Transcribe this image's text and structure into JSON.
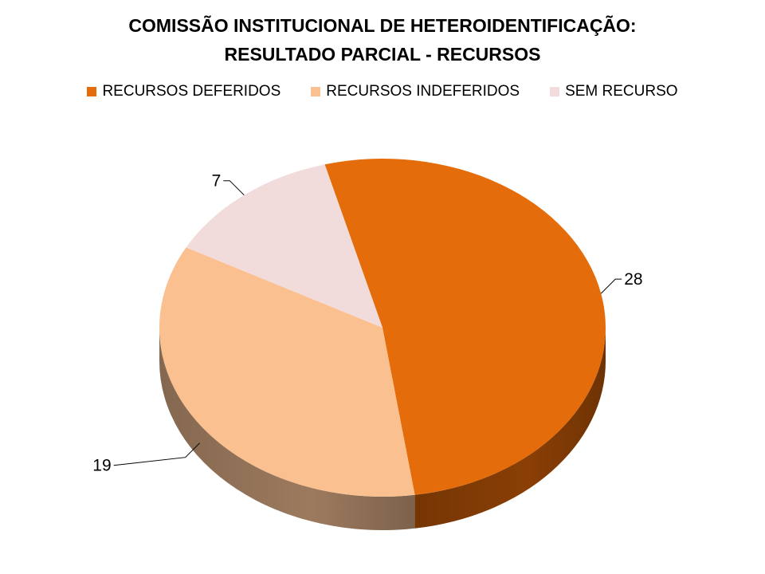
{
  "chart_data": {
    "type": "pie",
    "style": "3d",
    "title_lines": [
      "COMISSÃO INSTITUCIONAL DE HETEROIDENTIFICAÇÃO:",
      "RESULTADO PARCIAL - RECURSOS"
    ],
    "legend_position": "top",
    "slices": [
      {
        "label": "RECURSOS DEFERIDOS",
        "value": 28,
        "color": "#E46C0A",
        "side_color": "#8A3F05"
      },
      {
        "label": "RECURSOS INDEFERIDOS",
        "value": 19,
        "color": "#FAC090",
        "side_color": "#9C7A5E"
      },
      {
        "label": "SEM RECURSO",
        "value": 7,
        "color": "#F2DCDB",
        "side_color": "#615858"
      }
    ]
  }
}
